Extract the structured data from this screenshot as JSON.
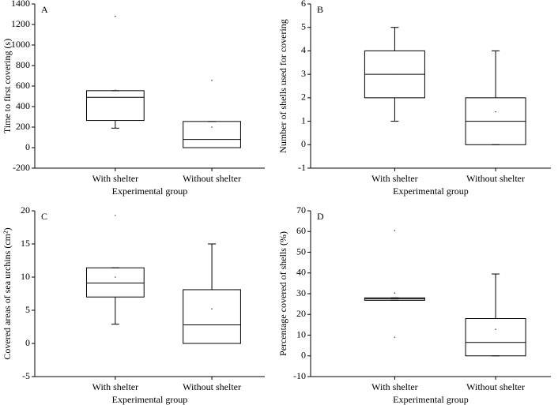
{
  "chart_data": [
    {
      "type": "box",
      "panel": "A",
      "ylabel": "Time to first covering (s)",
      "xlabel": "Experimental group",
      "categories": [
        "With shelter",
        "Without shelter"
      ],
      "boxes": [
        {
          "whisker_low": 190,
          "q1": 265,
          "median": 490,
          "q3": 555,
          "whisker_high": 555,
          "mean": 560,
          "outliers": [
            1280
          ]
        },
        {
          "whisker_low": 0,
          "q1": 0,
          "median": 80,
          "q3": 255,
          "whisker_high": 255,
          "mean": 200,
          "outliers": [
            655
          ]
        }
      ],
      "ylim": [
        -200,
        1400
      ],
      "yticks": [
        -200,
        0,
        200,
        400,
        600,
        800,
        1000,
        1200,
        1400
      ]
    },
    {
      "type": "box",
      "panel": "B",
      "ylabel": "Number of shells used for covering",
      "xlabel": "Experimental group",
      "categories": [
        "With shelter",
        "Without shelter"
      ],
      "boxes": [
        {
          "whisker_low": 1,
          "q1": 2,
          "median": 3,
          "q3": 4,
          "whisker_high": 5,
          "mean": 3,
          "outliers": []
        },
        {
          "whisker_low": 0,
          "q1": 0,
          "median": 1,
          "q3": 2,
          "whisker_high": 4,
          "mean": 1.4,
          "outliers": []
        }
      ],
      "ylim": [
        -1,
        6
      ],
      "yticks": [
        -1,
        0,
        1,
        2,
        3,
        4,
        5,
        6
      ]
    },
    {
      "type": "box",
      "panel": "C",
      "ylabel": "Covered areas of sea urchins (cm²)",
      "xlabel": "Experimental group",
      "categories": [
        "With shelter",
        "Without shelter"
      ],
      "boxes": [
        {
          "whisker_low": 2.9,
          "q1": 7,
          "median": 9.1,
          "q3": 11.4,
          "whisker_high": 11.4,
          "mean": 10,
          "outliers": [
            19.3
          ]
        },
        {
          "whisker_low": 0,
          "q1": 0,
          "median": 2.8,
          "q3": 8.1,
          "whisker_high": 15,
          "mean": 5.2,
          "outliers": []
        }
      ],
      "ylim": [
        -5,
        20
      ],
      "yticks": [
        -5,
        0,
        5,
        10,
        15,
        20
      ]
    },
    {
      "type": "box",
      "panel": "D",
      "ylabel": "Percentage covered of shells (%)",
      "xlabel": "Experimental group",
      "categories": [
        "With shelter",
        "Without shelter"
      ],
      "boxes": [
        {
          "whisker_low": 26.8,
          "q1": 26.8,
          "median": 27.5,
          "q3": 28,
          "whisker_high": 28,
          "mean": 30.3,
          "outliers": [
            60.5,
            9
          ]
        },
        {
          "whisker_low": 0,
          "q1": 0,
          "median": 6.5,
          "q3": 18,
          "whisker_high": 39.5,
          "mean": 12.8,
          "outliers": []
        }
      ],
      "ylim": [
        -10,
        70
      ],
      "yticks": [
        -10,
        0,
        10,
        20,
        30,
        40,
        50,
        60,
        70
      ]
    }
  ]
}
